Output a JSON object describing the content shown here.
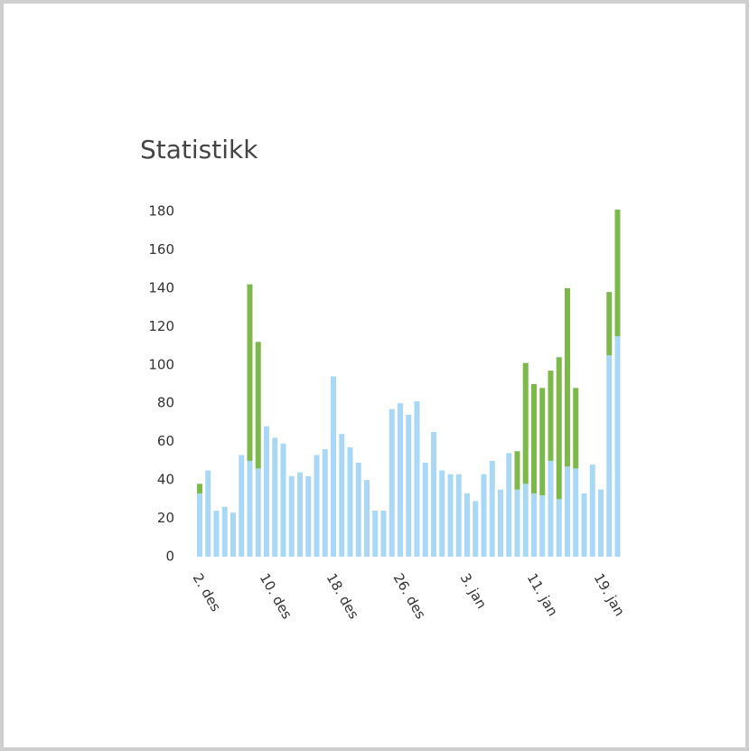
{
  "chart_data": {
    "type": "stacked-bar",
    "title": "Statistikk",
    "categories": [
      "2. des",
      null,
      null,
      null,
      null,
      null,
      null,
      null,
      "10. des",
      null,
      null,
      null,
      null,
      null,
      null,
      null,
      "18. des",
      null,
      null,
      null,
      null,
      null,
      null,
      null,
      "26. des",
      null,
      null,
      null,
      null,
      null,
      null,
      null,
      "3. jan",
      null,
      null,
      null,
      null,
      null,
      null,
      null,
      "11. jan",
      null,
      null,
      null,
      null,
      null,
      null,
      null,
      "19. jan",
      null,
      null
    ],
    "series": [
      {
        "color": "#a9d8f6",
        "values": [
          33,
          45,
          24,
          26,
          23,
          53,
          50,
          46,
          68,
          62,
          59,
          42,
          44,
          42,
          53,
          56,
          94,
          64,
          57,
          49,
          40,
          24,
          24,
          77,
          80,
          74,
          81,
          49,
          65,
          45,
          43,
          43,
          33,
          29,
          43,
          50,
          35,
          54,
          35,
          38,
          33,
          32,
          50,
          30,
          47,
          46,
          33,
          48,
          35,
          105,
          115
        ]
      },
      {
        "color": "#7cb84a",
        "values": [
          5,
          0,
          0,
          0,
          0,
          0,
          92,
          66,
          0,
          0,
          0,
          0,
          0,
          0,
          0,
          0,
          0,
          0,
          0,
          0,
          0,
          0,
          0,
          0,
          0,
          0,
          0,
          0,
          0,
          0,
          0,
          0,
          0,
          0,
          0,
          0,
          0,
          0,
          20,
          63,
          57,
          56,
          47,
          74,
          93,
          42,
          0,
          0,
          0,
          33,
          66
        ]
      }
    ],
    "ylim": [
      0,
      180
    ],
    "yticks": [
      0,
      20,
      40,
      60,
      80,
      100,
      120,
      140,
      160,
      180
    ],
    "grid": false
  }
}
